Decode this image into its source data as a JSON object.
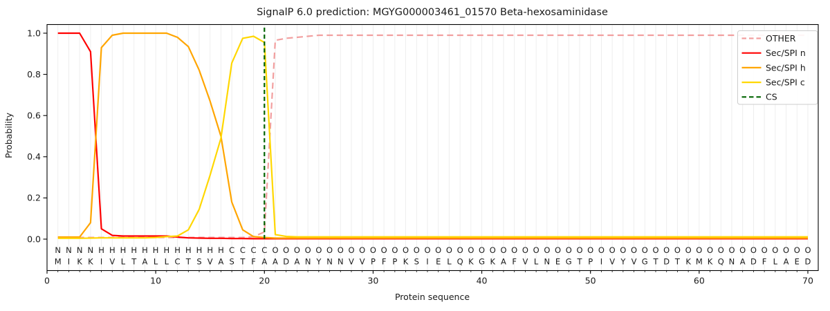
{
  "chart_data": {
    "type": "line",
    "title": "SignalP 6.0 prediction: MGYG000003461_01570 Beta-hexosaminidase",
    "xlabel": "Protein sequence",
    "ylabel": "Probability",
    "xlim": [
      0,
      71
    ],
    "ylim": [
      -0.16,
      1.04
    ],
    "xticks": [
      0,
      10,
      20,
      30,
      40,
      50,
      60,
      70
    ],
    "yticks": [
      "0.0",
      "0.2",
      "0.4",
      "0.6",
      "0.8",
      "1.0"
    ],
    "grid": "vertical line per residue, light gray",
    "legend_position": "upper right",
    "sequence": "MIKKIVLTALLCTSVASTFAADANYNNVVPFPKSIELQKGKAFVLNEGTPIVYVGTDTKMKQNADFLAED",
    "region_labels": "NNNNHHHHHHHHHHHHCCCCOOOOOOOOOOOOOOOOOOOOOOOOOOOOOOOOOOOOOOOOOOOOOOOOOO",
    "region_colors": {
      "N": "#ff0000",
      "H": "#ffa500",
      "C": "#ffd700",
      "O": "#9a9a9a"
    },
    "sequence_color": "#2b2b2b",
    "cs_position": 20,
    "series": [
      {
        "name": "OTHER",
        "color": "#f29f9f",
        "style": "dashed",
        "values": [
          0.008,
          0.008,
          0.008,
          0.008,
          0.008,
          0.008,
          0.008,
          0.008,
          0.008,
          0.008,
          0.008,
          0.008,
          0.008,
          0.008,
          0.008,
          0.008,
          0.008,
          0.008,
          0.012,
          0.035,
          0.965,
          0.975,
          0.98,
          0.985,
          0.99,
          0.99,
          0.99,
          0.99,
          0.99,
          0.99,
          0.99,
          0.99,
          0.99,
          0.99,
          0.99,
          0.99,
          0.99,
          0.99,
          0.99,
          0.99,
          0.99,
          0.99,
          0.99,
          0.99,
          0.99,
          0.99,
          0.99,
          0.99,
          0.99,
          0.99,
          0.99,
          0.99,
          0.99,
          0.99,
          0.99,
          0.99,
          0.99,
          0.99,
          0.99,
          0.99,
          0.99,
          0.99,
          0.99,
          0.99,
          0.99,
          0.99,
          0.99,
          0.99,
          0.99,
          0.99
        ]
      },
      {
        "name": "Sec/SPI n",
        "color": "#ff0000",
        "style": "solid",
        "values": [
          1.0,
          1.0,
          1.0,
          0.91,
          0.05,
          0.018,
          0.015,
          0.015,
          0.015,
          0.015,
          0.015,
          0.01,
          0.006,
          0.005,
          0.004,
          0.004,
          0.003,
          0.003,
          0.002,
          0.002,
          0.002,
          0.002,
          0.002,
          0.002,
          0.002,
          0.002,
          0.002,
          0.002,
          0.002,
          0.002,
          0.002,
          0.002,
          0.002,
          0.002,
          0.002,
          0.002,
          0.002,
          0.002,
          0.002,
          0.002,
          0.002,
          0.002,
          0.002,
          0.002,
          0.002,
          0.002,
          0.002,
          0.002,
          0.002,
          0.002,
          0.002,
          0.002,
          0.002,
          0.002,
          0.002,
          0.002,
          0.002,
          0.002,
          0.002,
          0.002,
          0.002,
          0.002,
          0.002,
          0.002,
          0.002,
          0.002,
          0.002,
          0.002,
          0.002,
          0.002
        ]
      },
      {
        "name": "Sec/SPI h",
        "color": "#ffa500",
        "style": "solid",
        "values": [
          0.01,
          0.01,
          0.01,
          0.08,
          0.93,
          0.99,
          1.0,
          1.0,
          1.0,
          1.0,
          1.0,
          0.98,
          0.935,
          0.82,
          0.67,
          0.5,
          0.18,
          0.045,
          0.012,
          0.008,
          0.005,
          0.005,
          0.005,
          0.005,
          0.005,
          0.005,
          0.005,
          0.005,
          0.005,
          0.005,
          0.005,
          0.005,
          0.005,
          0.005,
          0.005,
          0.005,
          0.005,
          0.005,
          0.005,
          0.005,
          0.005,
          0.005,
          0.005,
          0.005,
          0.005,
          0.005,
          0.005,
          0.005,
          0.005,
          0.005,
          0.005,
          0.005,
          0.005,
          0.005,
          0.005,
          0.005,
          0.005,
          0.005,
          0.005,
          0.005,
          0.005,
          0.005,
          0.005,
          0.005,
          0.005,
          0.005,
          0.005,
          0.005,
          0.005,
          0.005
        ]
      },
      {
        "name": "Sec/SPI c",
        "color": "#ffd700",
        "style": "solid",
        "values": [
          0.004,
          0.004,
          0.004,
          0.005,
          0.006,
          0.006,
          0.006,
          0.006,
          0.006,
          0.008,
          0.012,
          0.015,
          0.045,
          0.145,
          0.31,
          0.49,
          0.855,
          0.975,
          0.985,
          0.955,
          0.022,
          0.013,
          0.011,
          0.011,
          0.011,
          0.011,
          0.011,
          0.011,
          0.011,
          0.011,
          0.011,
          0.011,
          0.011,
          0.011,
          0.011,
          0.011,
          0.011,
          0.011,
          0.011,
          0.011,
          0.011,
          0.011,
          0.011,
          0.011,
          0.011,
          0.011,
          0.011,
          0.011,
          0.011,
          0.011,
          0.011,
          0.011,
          0.011,
          0.011,
          0.011,
          0.011,
          0.011,
          0.011,
          0.011,
          0.011,
          0.011,
          0.011,
          0.011,
          0.011,
          0.011,
          0.011,
          0.011,
          0.011,
          0.011,
          0.011
        ]
      },
      {
        "name": "CS",
        "color": "#006400",
        "style": "dashed",
        "kind": "vline",
        "x": 20
      }
    ],
    "legend_entries": [
      "OTHER",
      "Sec/SPI n",
      "Sec/SPI h",
      "Sec/SPI c",
      "CS"
    ]
  }
}
